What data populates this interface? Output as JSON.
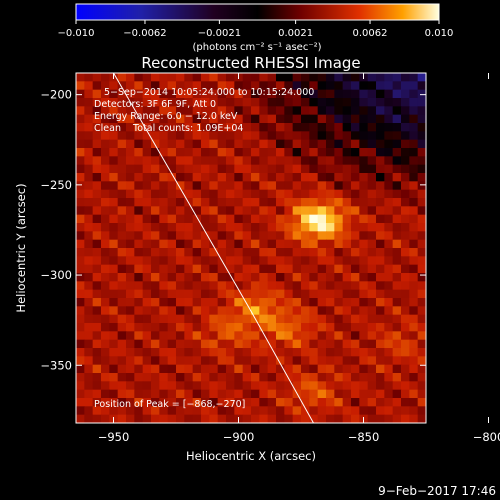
{
  "colorbar": {
    "ticks": [
      "−0.010",
      "−0.0062",
      "−0.0021",
      "0.0021",
      "0.0062",
      "0.010"
    ],
    "unit_label": "(photons cm⁻² s⁻¹ asec⁻²)",
    "range": [
      -0.01,
      0.01
    ]
  },
  "chart_data": {
    "type": "heatmap",
    "title": "Reconstructed RHESSI Image",
    "xlabel": "Heliocentric X (arcsec)",
    "ylabel": "Heliocentric Y (arcsec)",
    "xlim": [
      -965,
      -825
    ],
    "ylim": [
      -382,
      -188
    ],
    "x_ticks": [
      -950,
      -900,
      -850,
      -800
    ],
    "x_tick_labels": [
      "−950",
      "−900",
      "−850",
      "−800"
    ],
    "y_ticks": [
      -200,
      -250,
      -300,
      -350
    ],
    "y_tick_labels": [
      "−200",
      "−250",
      "−300",
      "−350"
    ],
    "annotations": [
      "5−Sep−2014 10:05:24.000 to 10:15:24.000",
      "Detectors: 3F 6F 9F, Att 0",
      "Energy Range: 6.0 − 12.0 keV",
      "Clean    Total counts: 1.09E+04"
    ],
    "peak_label": "Position of Peak = [−868,−270]",
    "peak": [
      -868,
      -270
    ],
    "sources": [
      {
        "x": -868,
        "y": -270,
        "intensity": 1.0
      },
      {
        "x": -893,
        "y": -318,
        "intensity": 0.45
      },
      {
        "x": -880,
        "y": -330,
        "intensity": 0.38
      },
      {
        "x": -905,
        "y": -332,
        "intensity": 0.3
      },
      {
        "x": -870,
        "y": -365,
        "intensity": 0.32
      },
      {
        "x": -835,
        "y": -338,
        "intensity": 0.22
      }
    ],
    "limb_curve": [
      [
        -950,
        -188
      ],
      [
        -922,
        -255
      ],
      [
        -895,
        -320
      ],
      [
        -870,
        -382
      ]
    ],
    "colors": {
      "background": "#000000",
      "low": "#0000ff",
      "mid": "#000000",
      "high": "#ffffff",
      "limb": "#ffffff"
    }
  },
  "footer": {
    "date": "9−Feb−2017 17:46"
  }
}
